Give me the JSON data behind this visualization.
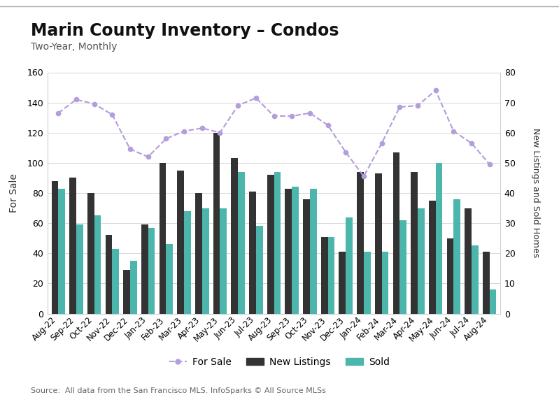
{
  "title": "Marin County Inventory – Condos",
  "subtitle": "Two-Year, Monthly",
  "source": "Source:  All data from the San Francisco MLS. InfoSparks © All Source MLSs",
  "categories": [
    "Aug-22",
    "Sep-22",
    "Oct-22",
    "Nov-22",
    "Dec-22",
    "Jan-23",
    "Feb-23",
    "Mar-23",
    "Apr-23",
    "May-23",
    "Jun-23",
    "Jul-23",
    "Aug-23",
    "Sep-23",
    "Oct-23",
    "Nov-23",
    "Dec-23",
    "Jan-24",
    "Feb-24",
    "Mar-24",
    "Apr-24",
    "May-24",
    "Jun-24",
    "Jul-24",
    "Aug-24"
  ],
  "for_sale": [
    133,
    142,
    139,
    132,
    109,
    104,
    116,
    121,
    123,
    120,
    138,
    143,
    131,
    131,
    133,
    125,
    107,
    91,
    113,
    137,
    138,
    148,
    121,
    113,
    99
  ],
  "new_listings": [
    88,
    90,
    80,
    52,
    29,
    59,
    100,
    95,
    80,
    120,
    103,
    81,
    92,
    83,
    76,
    51,
    41,
    94,
    93,
    107,
    94,
    75,
    50,
    70,
    41
  ],
  "sold": [
    83,
    59,
    65,
    43,
    35,
    57,
    46,
    68,
    70,
    70,
    94,
    58,
    94,
    84,
    83,
    51,
    64,
    41,
    41,
    62,
    70,
    100,
    76,
    45,
    16
  ],
  "for_sale_color": "#b39ddb",
  "new_listings_color": "#333333",
  "sold_color": "#4db6ac",
  "background_color": "#ffffff",
  "border_color": "#cccccc",
  "ylabel_left": "For Sale",
  "ylabel_right": "New Listings and Sold Homes",
  "ylim_left": [
    0,
    160
  ],
  "ylim_right": [
    0,
    80
  ],
  "yticks_left": [
    0,
    20,
    40,
    60,
    80,
    100,
    120,
    140,
    160
  ],
  "yticks_right": [
    0,
    10,
    20,
    30,
    40,
    50,
    60,
    70,
    80
  ],
  "grid_color": "#d0d0d0",
  "title_fontsize": 17,
  "subtitle_fontsize": 10,
  "tick_fontsize": 9,
  "source_fontsize": 8
}
